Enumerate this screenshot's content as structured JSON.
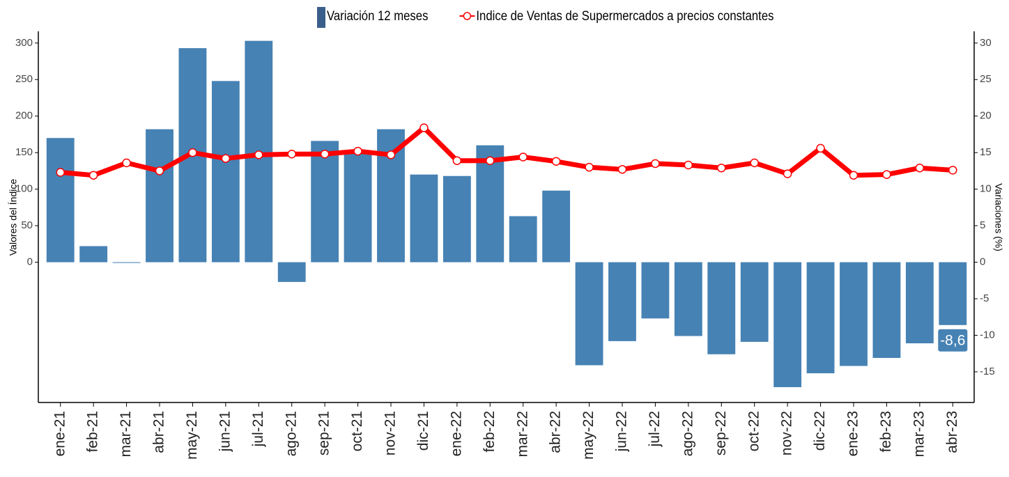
{
  "chart_data": {
    "type": "bar-line",
    "categories": [
      "ene-21",
      "feb-21",
      "mar-21",
      "abr-21",
      "may-21",
      "jun-21",
      "jul-21",
      "ago-21",
      "sep-21",
      "oct-21",
      "nov-21",
      "dic-21",
      "ene-22",
      "feb-22",
      "mar-22",
      "abr-22",
      "may-22",
      "jun-22",
      "jul-22",
      "ago-22",
      "sep-22",
      "oct-22",
      "nov-22",
      "dic-22",
      "ene-23",
      "feb-23",
      "mar-23",
      "abr-23"
    ],
    "series": [
      {
        "name": "Variación 12 meses",
        "type": "bar",
        "axis": "y2",
        "color": "#4682b4",
        "values": [
          17.0,
          2.2,
          -0.1,
          18.2,
          29.3,
          24.8,
          30.3,
          -2.7,
          16.6,
          15.2,
          18.2,
          12.0,
          11.8,
          16.0,
          6.3,
          9.8,
          -14.1,
          -10.8,
          -7.7,
          -10.1,
          -12.6,
          -10.9,
          -17.1,
          -15.2,
          -14.2,
          -13.1,
          -11.1,
          -8.6
        ],
        "value_labels": [
          null,
          null,
          null,
          null,
          null,
          null,
          null,
          null,
          null,
          null,
          null,
          null,
          null,
          null,
          null,
          null,
          null,
          null,
          null,
          null,
          null,
          null,
          null,
          null,
          null,
          null,
          null,
          "-8,6"
        ]
      },
      {
        "name": "Indice de Ventas de Supermercados a precios constantes",
        "type": "line",
        "axis": "y",
        "color": "#ff0000",
        "values": [
          123,
          119,
          136,
          125,
          150,
          142,
          147,
          148,
          148,
          152,
          147,
          184,
          139,
          139,
          144,
          138,
          130,
          127,
          135,
          133,
          129,
          136,
          121,
          156,
          119,
          120,
          129,
          126
        ]
      }
    ],
    "y_label": "Valores del Índice",
    "y2_label": "Variaciones (%)",
    "ylim": [
      -192,
      316
    ],
    "yticks": [
      0,
      50,
      100,
      150,
      200,
      250,
      300
    ],
    "y2lim": [
      -19.2,
      31.6
    ],
    "y2ticks": [
      -15,
      -10,
      -5,
      0,
      5,
      10,
      15,
      20,
      25,
      30
    ]
  }
}
